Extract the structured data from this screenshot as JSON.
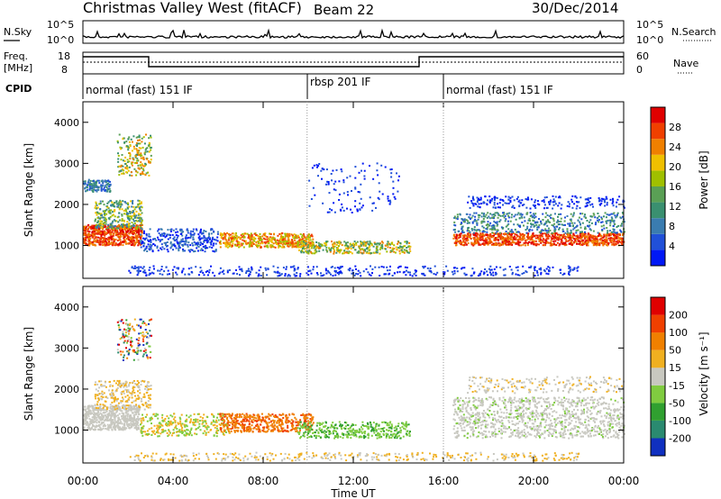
{
  "header": {
    "title": "Christmas Valley West (fitACF)",
    "beam": "Beam 22",
    "date": "30/Dec/2014"
  },
  "strip": {
    "nsky_label": "N.Sky",
    "nsearch_label": "N.Search",
    "nsky_ticks": [
      "10^5",
      "10^0"
    ],
    "nsky_right_ticks": [
      "10^5",
      "10^0"
    ],
    "freq_label_1": "Freq.",
    "freq_label_2": "[MHz]",
    "freq_ticks": [
      "18",
      "8"
    ],
    "nave_label": "Nave",
    "nave_ticks": [
      "60",
      "0"
    ],
    "cpid_label": "CPID",
    "cpid_segments": [
      {
        "label": "normal (fast) 151 IF",
        "start_h": 0
      },
      {
        "label": "rbsp 201 IF",
        "start_h": 9.95
      },
      {
        "label": "normal (fast) 151 IF",
        "start_h": 16.0
      }
    ]
  },
  "chart_data": [
    {
      "type": "heatmap",
      "panel": "power",
      "ylabel": "Slant Range [km]",
      "xlabel": "Time UT",
      "x_ticks": [
        "00:00",
        "04:00",
        "08:00",
        "12:00",
        "16:00",
        "20:00",
        "00:00"
      ],
      "x_tick_hours": [
        0,
        4,
        8,
        12,
        16,
        20,
        24
      ],
      "y_ticks": [
        1000,
        2000,
        3000,
        4000
      ],
      "ylim": [
        200,
        4500
      ],
      "colorbar_label": "Power [dB]",
      "colorbar_ticks": [
        "28",
        "24",
        "20",
        "16",
        "12",
        "8",
        "4"
      ],
      "colors": [
        "#0018f5",
        "#2050d8",
        "#3a7cb0",
        "#3a9070",
        "#5aa055",
        "#a0c000",
        "#f0c000",
        "#f08000",
        "#f04000",
        "#e00000"
      ]
    },
    {
      "type": "heatmap",
      "panel": "velocity",
      "ylabel": "Slant Range [km]",
      "xlabel": "Time UT",
      "x_ticks": [
        "00:00",
        "04:00",
        "08:00",
        "12:00",
        "16:00",
        "20:00",
        "00:00"
      ],
      "x_tick_hours": [
        0,
        4,
        8,
        12,
        16,
        20,
        24
      ],
      "y_ticks": [
        1000,
        2000,
        3000,
        4000
      ],
      "ylim": [
        200,
        4500
      ],
      "colorbar_label": "Velocity [m s⁻¹]",
      "colorbar_ticks": [
        "200",
        "100",
        "50",
        "15",
        "-15",
        "-50",
        "-100",
        "-200"
      ],
      "colors": [
        "#1030c0",
        "#2a8a70",
        "#30a030",
        "#80cc40",
        "#c8c8c0",
        "#f0b020",
        "#f08000",
        "#f04000",
        "#e00000"
      ]
    }
  ],
  "xaxis": {
    "label": "Time UT"
  }
}
